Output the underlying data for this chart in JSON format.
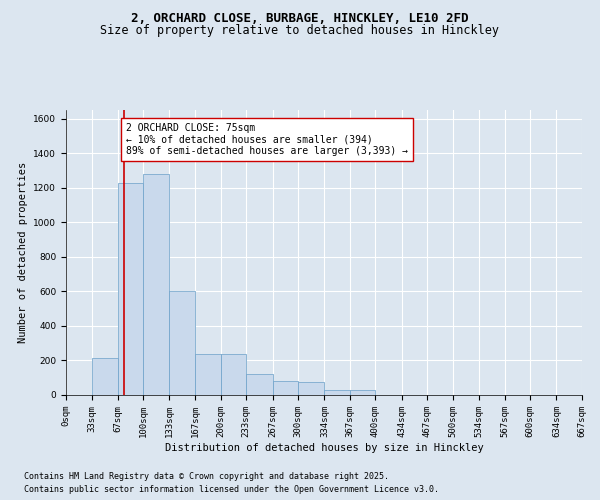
{
  "title_line1": "2, ORCHARD CLOSE, BURBAGE, HINCKLEY, LE10 2FD",
  "title_line2": "Size of property relative to detached houses in Hinckley",
  "xlabel": "Distribution of detached houses by size in Hinckley",
  "ylabel": "Number of detached properties",
  "bar_edges": [
    0,
    33,
    67,
    100,
    133,
    167,
    200,
    233,
    267,
    300,
    334,
    367,
    400,
    434,
    467,
    500,
    534,
    567,
    600,
    634,
    667
  ],
  "bar_heights": [
    0,
    215,
    1230,
    1280,
    600,
    240,
    240,
    120,
    80,
    75,
    30,
    30,
    0,
    0,
    0,
    0,
    0,
    0,
    0,
    0
  ],
  "bar_color": "#c9d9ec",
  "bar_edge_color": "#6a9fc8",
  "property_size": 75,
  "vline_color": "#cc0000",
  "annotation_text": "2 ORCHARD CLOSE: 75sqm\n← 10% of detached houses are smaller (394)\n89% of semi-detached houses are larger (3,393) →",
  "annotation_box_color": "#ffffff",
  "annotation_box_edge": "#cc0000",
  "ylim": [
    0,
    1650
  ],
  "yticks": [
    0,
    200,
    400,
    600,
    800,
    1000,
    1200,
    1400,
    1600
  ],
  "background_color": "#dce6f0",
  "plot_background": "#dce6f0",
  "grid_color": "#ffffff",
  "footer_line1": "Contains HM Land Registry data © Crown copyright and database right 2025.",
  "footer_line2": "Contains public sector information licensed under the Open Government Licence v3.0.",
  "title_fontsize": 9,
  "subtitle_fontsize": 8.5,
  "axis_label_fontsize": 7.5,
  "tick_fontsize": 6.5,
  "annotation_fontsize": 7,
  "footer_fontsize": 6
}
